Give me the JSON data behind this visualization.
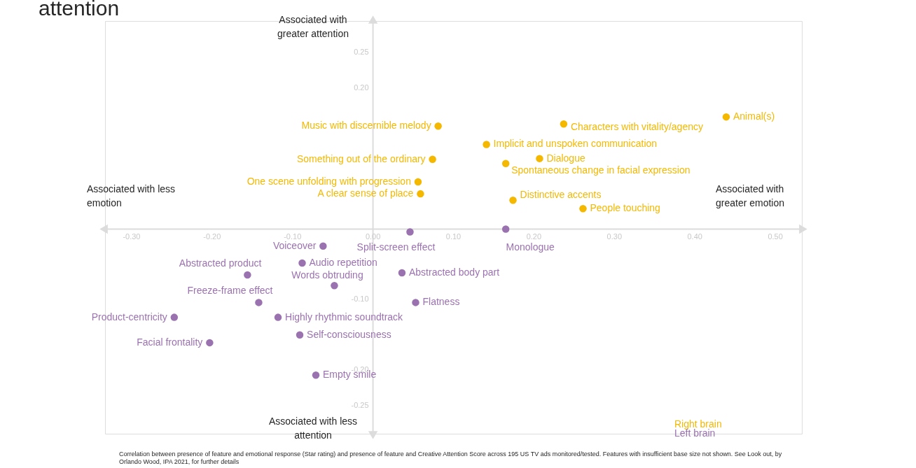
{
  "chart_data": {
    "type": "scatter",
    "title": "attention",
    "xlim": [
      -0.333,
      0.533
    ],
    "ylim": [
      -0.29,
      0.295
    ],
    "xticks": [
      {
        "value": -0.3,
        "label": "-0.30"
      },
      {
        "value": -0.2,
        "label": "-0.20"
      },
      {
        "value": -0.1,
        "label": "-0.10"
      },
      {
        "value": 0,
        "label": "0.00"
      },
      {
        "value": 0.1,
        "label": "0.10"
      },
      {
        "value": 0.2,
        "label": "0.20"
      },
      {
        "value": 0.3,
        "label": "0.30"
      },
      {
        "value": 0.4,
        "label": "0.40"
      },
      {
        "value": 0.5,
        "label": "0.50"
      }
    ],
    "yticks": [
      {
        "value": 0.25,
        "label": "0.25"
      },
      {
        "value": 0.2,
        "label": "0.20"
      },
      {
        "value": -0.1,
        "label": "-0.10"
      },
      {
        "value": -0.2,
        "label": "-0.20"
      },
      {
        "value": -0.25,
        "label": "-0.25"
      }
    ],
    "grid": false,
    "legend": "bottom right",
    "marker": "circle",
    "series": [
      {
        "name": "Right brain",
        "color": "#f5b800",
        "x": [
          0.439,
          0.237,
          0.081,
          0.141,
          0.207,
          0.074,
          0.165,
          0.056,
          0.059,
          0.174,
          0.261
        ],
        "values": [
          0.159,
          0.149,
          0.146,
          0.12,
          0.1,
          0.099,
          0.093,
          0.067,
          0.05,
          0.041,
          0.029
        ]
      },
      {
        "name": "Left brain",
        "color": "#9b72b0",
        "x": [
          0.046,
          0.165,
          -0.062,
          -0.088,
          -0.156,
          0.036,
          -0.048,
          -0.142,
          0.053,
          -0.247,
          -0.118,
          -0.091,
          -0.203,
          -0.071
        ],
        "values": [
          -0.004,
          0.0,
          -0.024,
          -0.048,
          -0.065,
          -0.062,
          -0.08,
          -0.104,
          -0.104,
          -0.125,
          -0.125,
          -0.15,
          -0.161,
          -0.207
        ]
      }
    ],
    "annotations": [
      "Associated with\ngreater attention",
      "Associated with less\nemotion",
      "Associated with\ngreater emotion",
      "Associated with less\nattention",
      "Correlation between presence of feature and emotional response (Star rating) and presence of feature and Creative Attention Score across 195 US TV ads monitored/tested. Features with insufficient base size not shown. See Look out, by Orlando Wood, IPA 2021, for further details",
      {
        "text": "Animal(s)",
        "x": 0.439,
        "y": 0.159
      },
      {
        "text": "Characters with vitality/agency",
        "x": 0.237,
        "y": 0.149
      },
      {
        "text": "Music with discernible melody",
        "x": 0.081,
        "y": 0.146
      },
      {
        "text": "Implicit and unspoken communication",
        "x": 0.141,
        "y": 0.12
      },
      {
        "text": "Dialogue",
        "x": 0.207,
        "y": 0.1
      },
      {
        "text": "Something out of the ordinary",
        "x": 0.074,
        "y": 0.099
      },
      {
        "text": "Spontaneous change in facial expression",
        "x": 0.165,
        "y": 0.093
      },
      {
        "text": "One scene unfolding with progression",
        "x": 0.056,
        "y": 0.067
      },
      {
        "text": "A clear sense of place",
        "x": 0.059,
        "y": 0.05
      },
      {
        "text": "Distinctive accents",
        "x": 0.174,
        "y": 0.041
      },
      {
        "text": "People touching",
        "x": 0.261,
        "y": 0.029
      },
      {
        "text": "Split-screen effect",
        "x": 0.046,
        "y": -0.004
      },
      {
        "text": "Monologue",
        "x": 0.165,
        "y": 0.0
      },
      {
        "text": "Voiceover",
        "x": -0.062,
        "y": -0.024
      },
      {
        "text": "Audio repetition",
        "x": -0.088,
        "y": -0.048
      },
      {
        "text": "Abstracted product",
        "x": -0.156,
        "y": -0.065
      },
      {
        "text": "Abstracted body part",
        "x": 0.036,
        "y": -0.062
      },
      {
        "text": "Words obtruding",
        "x": -0.048,
        "y": -0.08
      },
      {
        "text": "Freeze-frame effect",
        "x": -0.142,
        "y": -0.104
      },
      {
        "text": "Flatness",
        "x": 0.053,
        "y": -0.104
      },
      {
        "text": "Product-centricity",
        "x": -0.247,
        "y": -0.125
      },
      {
        "text": "Highly rhythmic soundtrack",
        "x": -0.118,
        "y": -0.125
      },
      {
        "text": "Self-consciousness",
        "x": -0.091,
        "y": -0.15
      },
      {
        "text": "Facial frontality",
        "x": -0.203,
        "y": -0.161
      },
      {
        "text": "Empty smile",
        "x": -0.071,
        "y": -0.207
      }
    ]
  }
}
